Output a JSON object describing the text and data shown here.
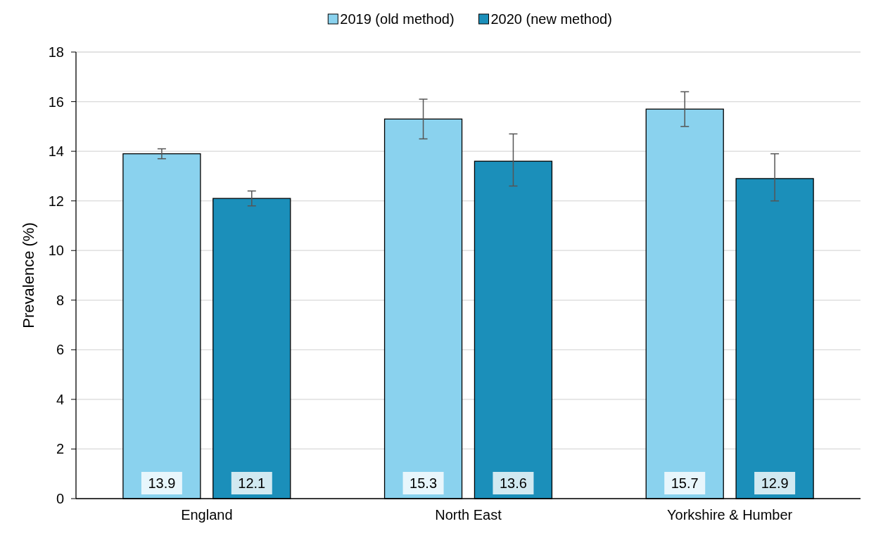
{
  "chart_data": {
    "type": "bar",
    "ylabel": "Prevalence (%)",
    "categories": [
      "England",
      "North East",
      "Yorkshire & Humber"
    ],
    "series": [
      {
        "name": "2019 (old method)",
        "color": "#8ad2ee",
        "values": [
          13.9,
          15.3,
          15.7
        ],
        "errors": [
          [
            13.7,
            14.1
          ],
          [
            14.5,
            16.1
          ],
          [
            15.0,
            16.4
          ]
        ]
      },
      {
        "name": "2020 (new method)",
        "color": "#1b8fba",
        "values": [
          12.1,
          13.6,
          12.9
        ],
        "errors": [
          [
            11.8,
            12.4
          ],
          [
            12.6,
            14.7
          ],
          [
            12.0,
            13.9
          ]
        ]
      }
    ],
    "ylim": [
      0,
      18
    ],
    "yticks": [
      0,
      2,
      4,
      6,
      8,
      10,
      12,
      14,
      16,
      18
    ],
    "grid": "y",
    "legend": "top",
    "data_labels": true
  }
}
